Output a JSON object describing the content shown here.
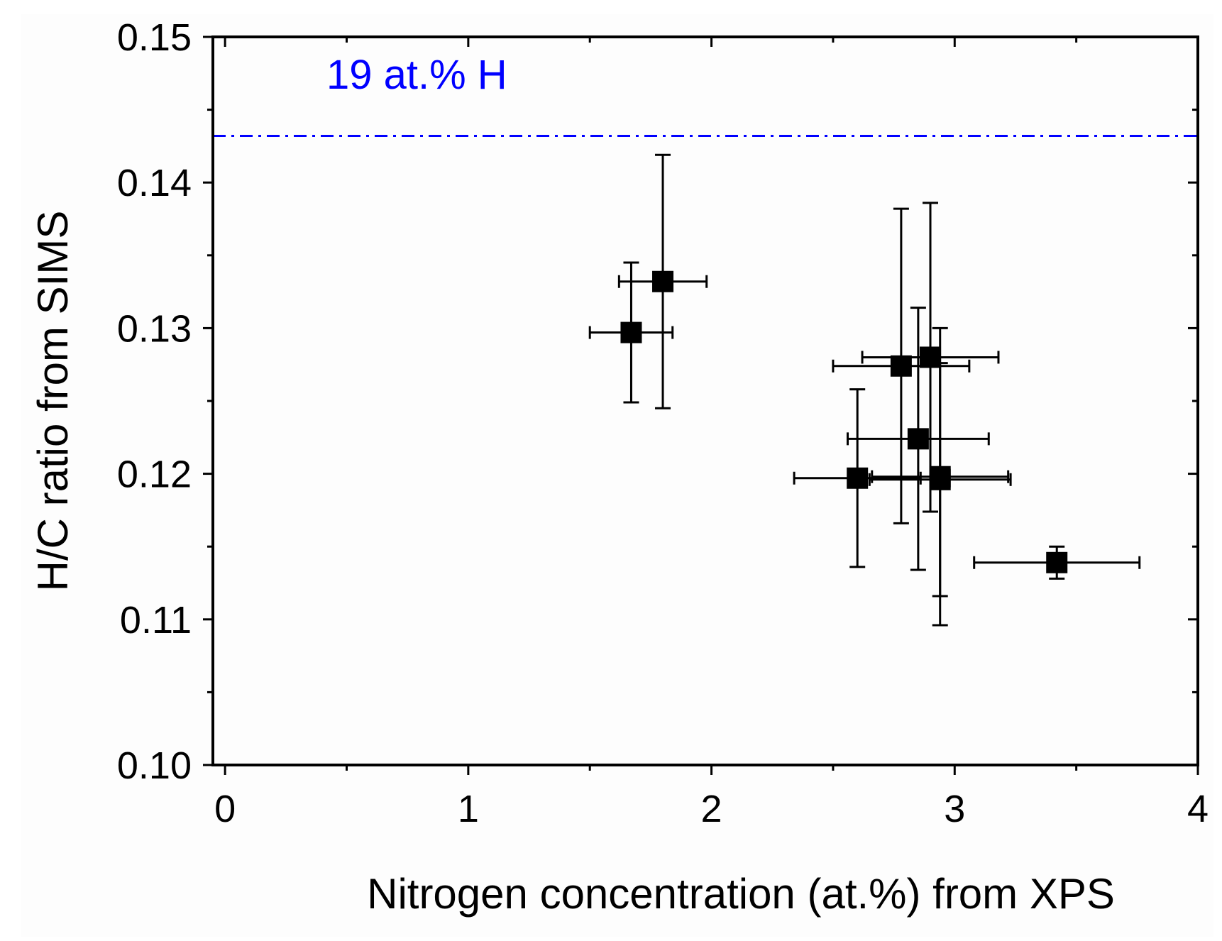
{
  "chart_data": {
    "type": "scatter",
    "title": "",
    "xlabel": "Nitrogen concentration (at.%) from XPS",
    "ylabel": "H/C ratio from SIMS",
    "xlim": [
      -0.05,
      4.0
    ],
    "ylim": [
      0.1,
      0.15
    ],
    "x_ticks": [
      {
        "value": 0,
        "label": "0"
      },
      {
        "value": 1,
        "label": "1"
      },
      {
        "value": 2,
        "label": "2"
      },
      {
        "value": 3,
        "label": "3"
      },
      {
        "value": 4,
        "label": "4"
      }
    ],
    "y_ticks": [
      {
        "value": 0.1,
        "label": "0.10"
      },
      {
        "value": 0.11,
        "label": "0.11"
      },
      {
        "value": 0.12,
        "label": "0.12"
      },
      {
        "value": 0.13,
        "label": "0.13"
      },
      {
        "value": 0.14,
        "label": "0.14"
      },
      {
        "value": 0.15,
        "label": "0.15"
      }
    ],
    "reference_line": {
      "y": 0.1432,
      "label": "19 at.% H",
      "color": "#0000ff",
      "style": "dash-dot"
    },
    "series": [
      {
        "name": "samples",
        "marker": "square",
        "color": "#000000",
        "points": [
          {
            "x": 1.67,
            "y": 0.1297,
            "xerr": 0.17,
            "yerr": 0.0048
          },
          {
            "x": 1.8,
            "y": 0.1332,
            "xerr": 0.18,
            "yerr": 0.0087
          },
          {
            "x": 2.6,
            "y": 0.1197,
            "xerr": 0.26,
            "yerr": 0.0061
          },
          {
            "x": 2.78,
            "y": 0.1274,
            "xerr": 0.28,
            "yerr": 0.0108
          },
          {
            "x": 2.85,
            "y": 0.1224,
            "xerr": 0.29,
            "yerr": 0.009
          },
          {
            "x": 2.9,
            "y": 0.128,
            "xerr": 0.28,
            "yerr": 0.0106
          },
          {
            "x": 2.94,
            "y": 0.1196,
            "xerr": 0.29,
            "yerr": 0.008
          },
          {
            "x": 2.94,
            "y": 0.1198,
            "xerr": 0.28,
            "yerr": 0.0102
          },
          {
            "x": 3.42,
            "y": 0.1139,
            "xerr": 0.34,
            "yerr": 0.0011
          }
        ]
      }
    ],
    "grid": false,
    "legend": "none"
  }
}
